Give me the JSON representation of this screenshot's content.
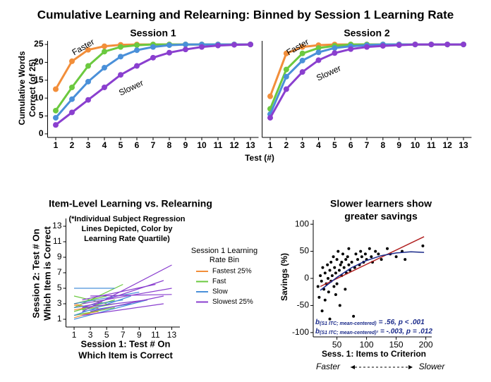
{
  "header": {
    "title": "Cumulative Learning and Relearning: Binned by Session 1 Learning Rate",
    "y_label": [
      "Cumulative Words",
      "Correct (of 25)"
    ],
    "x_label": "Test (#)"
  },
  "chart_data": [
    {
      "type": "line",
      "title": "Session 1",
      "annotations": [
        "Faster",
        "Slower"
      ],
      "xlim": [
        0.5,
        13.5
      ],
      "ylim": [
        -1,
        26
      ],
      "xticks": [
        1,
        2,
        3,
        4,
        5,
        6,
        7,
        8,
        9,
        10,
        11,
        12,
        13
      ],
      "yticks": [
        0,
        5,
        10,
        15,
        20,
        25
      ],
      "x": [
        1,
        2,
        3,
        4,
        5,
        6,
        7,
        8,
        9,
        10,
        11,
        12,
        13
      ],
      "series": [
        {
          "name": "Fastest 25%",
          "color": "#f28e3a",
          "values": [
            12.5,
            20.3,
            23.5,
            24.5,
            24.9,
            25,
            25,
            25,
            25,
            25,
            25,
            25,
            25
          ]
        },
        {
          "name": "Fast",
          "color": "#6bc93f",
          "values": [
            6.5,
            13,
            19,
            23,
            24.3,
            24.8,
            25,
            25,
            25,
            25,
            25,
            25,
            25
          ]
        },
        {
          "name": "Slow",
          "color": "#4a90d9",
          "values": [
            4.5,
            9.7,
            14.6,
            18.5,
            21.6,
            23.4,
            24.3,
            24.8,
            25,
            25,
            25,
            25,
            25
          ]
        },
        {
          "name": "Slowest 25%",
          "color": "#8a3fcf",
          "values": [
            2.5,
            6,
            9.5,
            13,
            16.5,
            19,
            21.3,
            22.7,
            23.6,
            24.3,
            24.7,
            24.9,
            25
          ]
        }
      ]
    },
    {
      "type": "line",
      "title": "Session 2",
      "annotations": [
        "Faster",
        "Slower"
      ],
      "xlim": [
        0.5,
        13.5
      ],
      "ylim": [
        -1,
        26
      ],
      "xticks": [
        1,
        2,
        3,
        4,
        5,
        6,
        7,
        8,
        9,
        10,
        11,
        12,
        13
      ],
      "x": [
        1,
        2,
        3,
        4,
        5,
        6,
        7,
        8,
        9,
        10,
        11,
        12,
        13
      ],
      "series": [
        {
          "name": "Fastest 25%",
          "color": "#f28e3a",
          "values": [
            10.5,
            22.5,
            24.3,
            24.8,
            25,
            25,
            25,
            25,
            25,
            25,
            25,
            25,
            25
          ]
        },
        {
          "name": "Fast",
          "color": "#6bc93f",
          "values": [
            7,
            18,
            22.5,
            24,
            24.6,
            25,
            25,
            25,
            25,
            25,
            25,
            25,
            25
          ]
        },
        {
          "name": "Slow",
          "color": "#4a90d9",
          "values": [
            5.5,
            16,
            20.5,
            22.8,
            24,
            24.5,
            24.8,
            25,
            25,
            25,
            25,
            25,
            25
          ]
        },
        {
          "name": "Slowest 25%",
          "color": "#8a3fcf",
          "values": [
            4.5,
            12.5,
            17.3,
            20.6,
            22.6,
            23.7,
            24.3,
            24.6,
            24.8,
            25,
            25,
            25,
            25
          ]
        }
      ]
    },
    {
      "type": "segments",
      "title": "Item-Level Learning vs. Relearning",
      "note": [
        "(*Individual Subject Regression",
        "Lines Depicted, Color by",
        "Learning Rate Quartile)"
      ],
      "y_label": [
        "Session 2: Test # On",
        "Which Item is Correct"
      ],
      "x_label": [
        "Session 1: Test # On",
        "Which Item is Correct"
      ],
      "legend_title": [
        "Session 1 Learning",
        "Rate Bin"
      ],
      "xlim": [
        0,
        14
      ],
      "ylim": [
        0,
        14
      ],
      "xticks": [
        1,
        3,
        5,
        7,
        9,
        11,
        13
      ],
      "yticks": [
        1,
        3,
        5,
        7,
        9,
        11,
        13
      ],
      "series": [
        {
          "name": "Fastest 25%",
          "color": "#f28e3a",
          "segments": [
            {
              "x": [
                1,
                4
              ],
              "y": [
                2.2,
                2.8
              ]
            },
            {
              "x": [
                1,
                3
              ],
              "y": [
                3,
                2.5
              ]
            },
            {
              "x": [
                1,
                4
              ],
              "y": [
                1.5,
                2
              ]
            },
            {
              "x": [
                1,
                5
              ],
              "y": [
                2.5,
                3.2
              ]
            },
            {
              "x": [
                1,
                3
              ],
              "y": [
                1.2,
                1.8
              ]
            },
            {
              "x": [
                1,
                4
              ],
              "y": [
                2.8,
                2.4
              ]
            }
          ]
        },
        {
          "name": "Fast",
          "color": "#6bc93f",
          "segments": [
            {
              "x": [
                1,
                6
              ],
              "y": [
                2,
                3.5
              ]
            },
            {
              "x": [
                1,
                5
              ],
              "y": [
                3,
                4
              ]
            },
            {
              "x": [
                1,
                7
              ],
              "y": [
                2.5,
                5.5
              ]
            },
            {
              "x": [
                1,
                6
              ],
              "y": [
                1.5,
                2.5
              ]
            },
            {
              "x": [
                1,
                5
              ],
              "y": [
                4,
                3
              ]
            },
            {
              "x": [
                2,
                6
              ],
              "y": [
                2.2,
                3
              ]
            }
          ]
        },
        {
          "name": "Slow",
          "color": "#4a90d9",
          "segments": [
            {
              "x": [
                1,
                8
              ],
              "y": [
                1.5,
                4
              ]
            },
            {
              "x": [
                1,
                7
              ],
              "y": [
                2.5,
                3.5
              ]
            },
            {
              "x": [
                1,
                9
              ],
              "y": [
                3,
                4.5
              ]
            },
            {
              "x": [
                1,
                6
              ],
              "y": [
                5,
                5
              ]
            },
            {
              "x": [
                2,
                8
              ],
              "y": [
                2,
                3
              ]
            },
            {
              "x": [
                1,
                10
              ],
              "y": [
                1,
                3.5
              ]
            }
          ]
        },
        {
          "name": "Slowest 25%",
          "color": "#8a3fcf",
          "segments": [
            {
              "x": [
                2,
                13
              ],
              "y": [
                2,
                8
              ]
            },
            {
              "x": [
                2,
                12
              ],
              "y": [
                2.5,
                6
              ]
            },
            {
              "x": [
                2,
                13
              ],
              "y": [
                3,
                5
              ]
            },
            {
              "x": [
                3,
                12
              ],
              "y": [
                2,
                4
              ]
            },
            {
              "x": [
                2,
                11
              ],
              "y": [
                3.5,
                5.5
              ]
            },
            {
              "x": [
                2,
                10
              ],
              "y": [
                2.5,
                3.5
              ]
            },
            {
              "x": [
                2,
                12
              ],
              "y": [
                1.5,
                3
              ]
            },
            {
              "x": [
                3,
                13
              ],
              "y": [
                4,
                4.2
              ]
            }
          ]
        }
      ]
    },
    {
      "type": "scatter",
      "title": [
        "Slower learners show",
        "greater savings"
      ],
      "y_label": "Savings (%)",
      "x_label": "Sess. 1: Items to Criterion",
      "xlim": [
        10,
        210
      ],
      "ylim": [
        -108,
        108
      ],
      "xticks": [
        50,
        100,
        150,
        200
      ],
      "yticks": [
        -100,
        -50,
        0,
        50,
        100
      ],
      "color": "#000000",
      "x": [
        18,
        20,
        22,
        24,
        25,
        26,
        28,
        30,
        30,
        32,
        34,
        35,
        36,
        38,
        38,
        40,
        40,
        42,
        44,
        45,
        46,
        48,
        48,
        50,
        50,
        52,
        54,
        55,
        56,
        58,
        58,
        60,
        62,
        64,
        65,
        66,
        68,
        70,
        70,
        72,
        75,
        78,
        80,
        82,
        85,
        88,
        90,
        92,
        95,
        98,
        100,
        105,
        108,
        110,
        115,
        120,
        125,
        135,
        140,
        150,
        160,
        165,
        195
      ],
      "y": [
        -15,
        -35,
        5,
        -5,
        -60,
        20,
        -20,
        10,
        -40,
        -10,
        25,
        0,
        -25,
        15,
        -75,
        30,
        -5,
        5,
        40,
        -15,
        20,
        -30,
        10,
        35,
        -10,
        50,
        15,
        -50,
        25,
        30,
        5,
        45,
        20,
        -20,
        35,
        10,
        40,
        25,
        55,
        15,
        30,
        -70,
        20,
        45,
        35,
        25,
        50,
        40,
        30,
        45,
        35,
        55,
        40,
        30,
        50,
        45,
        35,
        55,
        45,
        40,
        50,
        35,
        60
      ],
      "fits": [
        {
          "color": "#b22222",
          "x": [
            22,
            197
          ],
          "y": [
            -15,
            77
          ]
        },
        {
          "color": "#1a2a8a",
          "x": [
            22,
            50,
            75,
            100,
            125,
            150,
            175,
            197
          ],
          "y": [
            -22,
            2,
            20,
            33,
            42,
            47,
            49,
            48
          ]
        }
      ],
      "stats": [
        {
          "b": "b",
          "sub": "(S1 ITC; mean-centered)",
          "rest": "= .56, p < .001"
        },
        {
          "b": "b",
          "sub": "(S1 ITC; mean-centered)²",
          "rest": "= -.003, p = .012"
        }
      ],
      "direction": [
        "Faster",
        "Slower"
      ]
    }
  ]
}
